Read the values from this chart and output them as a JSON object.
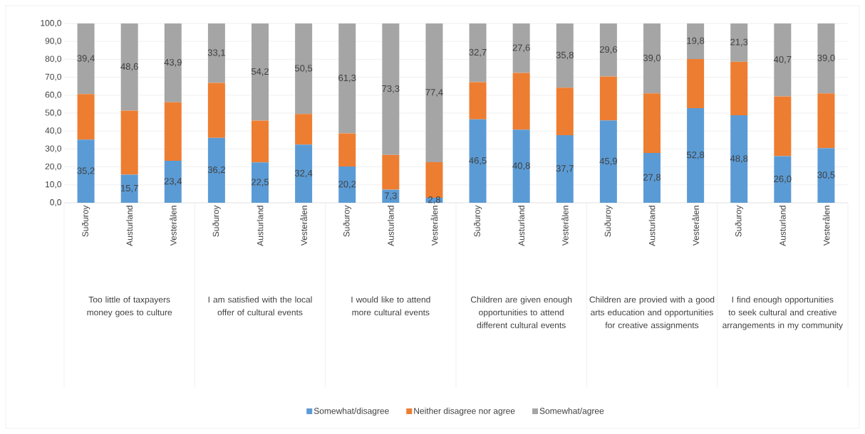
{
  "chart_data": {
    "type": "bar",
    "stacked": true,
    "categories": [
      "Suðuroy",
      "Austurland",
      "Vesterålen",
      "Suðuroy",
      "Austurland",
      "Vesterålen",
      "Suðuroy",
      "Austurland",
      "Vesterålen",
      "Suðuroy",
      "Austurland",
      "Vesterålen",
      "Suðuroy",
      "Austurland",
      "Vesterålen",
      "Suðuroy",
      "Austurland",
      "Vesterålen"
    ],
    "series": [
      {
        "name": "Somewhat/disagree",
        "color": "#5b9bd5",
        "values": [
          35.2,
          15.7,
          23.4,
          36.2,
          22.5,
          32.4,
          20.2,
          7.3,
          2.8,
          46.5,
          40.8,
          37.7,
          45.9,
          27.8,
          52.8,
          48.8,
          26.0,
          30.5
        ],
        "value_labels": [
          "35,2",
          "15,7",
          "23,4",
          "36,2",
          "22,5",
          "32,4",
          "20,2",
          "7,3",
          "2,8",
          "46,5",
          "40,8",
          "37,7",
          "45,9",
          "27,8",
          "52,8",
          "48,8",
          "26,0",
          "30,5"
        ]
      },
      {
        "name": "Neither disagree nor agree",
        "color": "#ed7d31",
        "values": [
          25.4,
          35.7,
          32.7,
          30.7,
          23.3,
          17.1,
          18.5,
          19.4,
          19.8,
          20.8,
          31.6,
          26.5,
          24.5,
          33.2,
          27.4,
          29.9,
          33.3,
          30.5
        ]
      },
      {
        "name": "Somewhat/agree",
        "color": "#a5a5a5",
        "values": [
          39.4,
          48.6,
          43.9,
          33.1,
          54.2,
          50.5,
          61.3,
          73.3,
          77.4,
          32.7,
          27.6,
          35.8,
          29.6,
          39.0,
          19.8,
          21.3,
          40.7,
          39.0
        ],
        "value_labels": [
          "39,4",
          "48,6",
          "43,9",
          "33,1",
          "54,2",
          "50,5",
          "61,3",
          "73,3",
          "77,4",
          "32,7",
          "27,6",
          "35,8",
          "29,6",
          "39,0",
          "19,8",
          "21,3",
          "40,7",
          "39,0"
        ]
      }
    ],
    "ylim": [
      0,
      100
    ],
    "yticks": [
      {
        "value": 0,
        "label": "0,0"
      },
      {
        "value": 10,
        "label": "10,0"
      },
      {
        "value": 20,
        "label": "20,0"
      },
      {
        "value": 30,
        "label": "30,0"
      },
      {
        "value": 40,
        "label": "40,0"
      },
      {
        "value": 50,
        "label": "50,0"
      },
      {
        "value": 60,
        "label": "60,0"
      },
      {
        "value": 70,
        "label": "70,0"
      },
      {
        "value": 80,
        "label": "80,0"
      },
      {
        "value": 90,
        "label": "90,0"
      },
      {
        "value": 100,
        "label": "100,0"
      }
    ],
    "grid": "y",
    "legend": "bottom",
    "annotations": [
      "Too little of taxpayers money goes to culture",
      "I am satisfied with the local offer of cultural events",
      "I would like to attend more cultural events",
      "Children are given enough opportunities to attend different cultural events",
      "Children are provied with a good arts education and opportunities for creative assignments",
      "I find enough opportunities to seek cultural and creative arrangements in my community"
    ]
  }
}
